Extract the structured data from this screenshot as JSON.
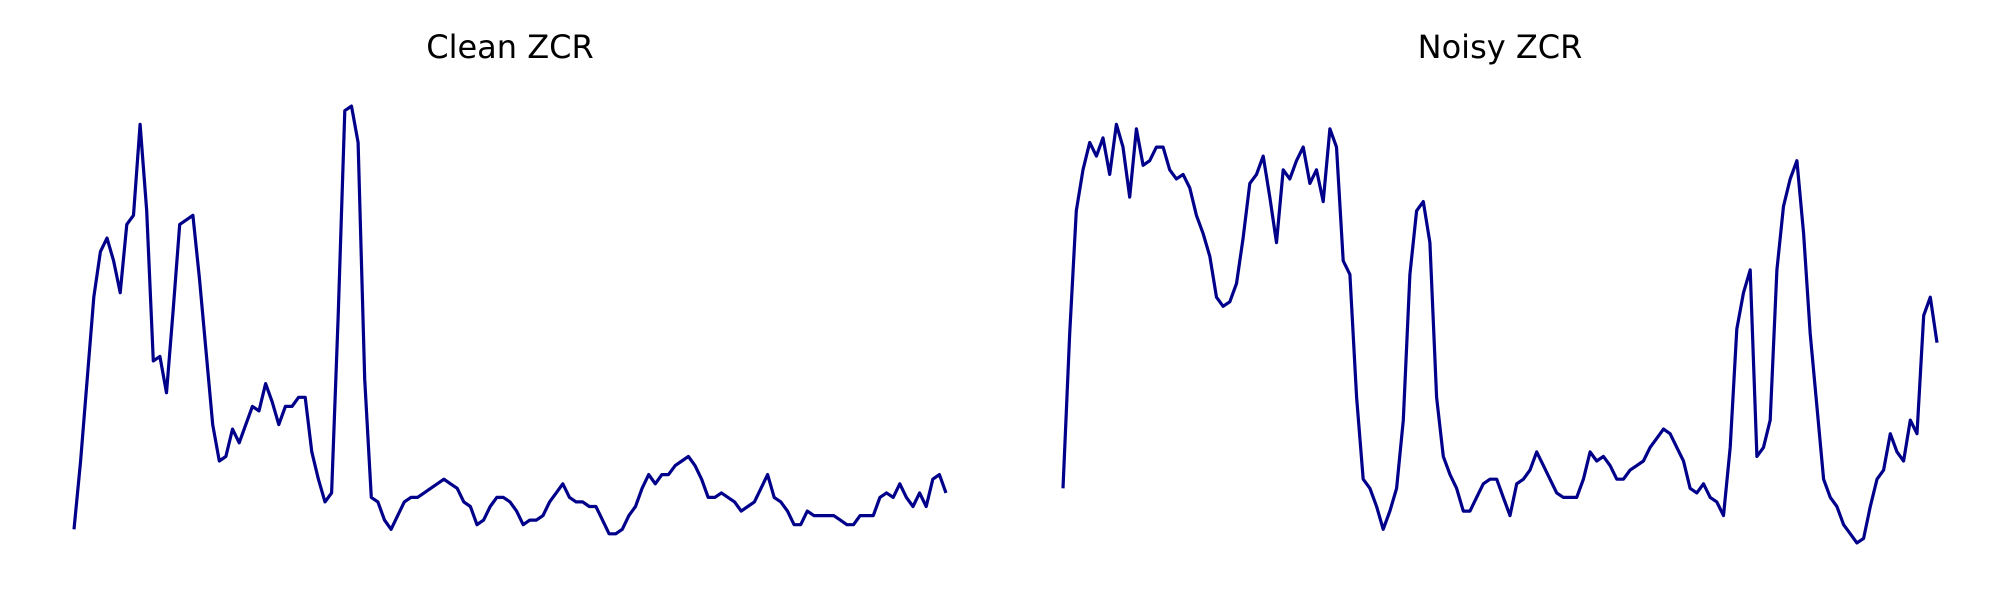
{
  "chart_data": [
    {
      "type": "line",
      "title": "Clean ZCR",
      "xlabel": "",
      "ylabel": "",
      "axes_visible": false,
      "grid": false,
      "color": "#00008b",
      "ylim": [
        0,
        1
      ],
      "values": [
        0.05,
        0.2,
        0.38,
        0.56,
        0.66,
        0.69,
        0.64,
        0.57,
        0.72,
        0.74,
        0.94,
        0.75,
        0.42,
        0.43,
        0.35,
        0.53,
        0.72,
        0.73,
        0.74,
        0.6,
        0.44,
        0.28,
        0.2,
        0.21,
        0.27,
        0.24,
        0.28,
        0.32,
        0.31,
        0.37,
        0.33,
        0.28,
        0.32,
        0.32,
        0.34,
        0.34,
        0.22,
        0.16,
        0.11,
        0.13,
        0.52,
        0.97,
        0.98,
        0.9,
        0.38,
        0.12,
        0.11,
        0.07,
        0.05,
        0.08,
        0.11,
        0.12,
        0.12,
        0.13,
        0.14,
        0.15,
        0.16,
        0.15,
        0.14,
        0.11,
        0.1,
        0.06,
        0.07,
        0.1,
        0.12,
        0.12,
        0.11,
        0.09,
        0.06,
        0.07,
        0.07,
        0.08,
        0.11,
        0.13,
        0.15,
        0.12,
        0.11,
        0.11,
        0.1,
        0.1,
        0.07,
        0.04,
        0.04,
        0.05,
        0.08,
        0.1,
        0.14,
        0.17,
        0.15,
        0.17,
        0.17,
        0.19,
        0.2,
        0.21,
        0.19,
        0.16,
        0.12,
        0.12,
        0.13,
        0.12,
        0.11,
        0.09,
        0.1,
        0.11,
        0.14,
        0.17,
        0.12,
        0.11,
        0.09,
        0.06,
        0.06,
        0.09,
        0.08,
        0.08,
        0.08,
        0.08,
        0.07,
        0.06,
        0.06,
        0.08,
        0.08,
        0.08,
        0.12,
        0.13,
        0.12,
        0.15,
        0.12,
        0.1,
        0.13,
        0.1,
        0.16,
        0.17,
        0.13
      ]
    },
    {
      "type": "line",
      "title": "Noisy ZCR",
      "xlabel": "",
      "ylabel": "",
      "axes_visible": false,
      "grid": false,
      "color": "#00008b",
      "ylim": [
        0,
        1
      ],
      "values": [
        0.14,
        0.48,
        0.75,
        0.84,
        0.9,
        0.87,
        0.91,
        0.83,
        0.94,
        0.89,
        0.78,
        0.93,
        0.85,
        0.86,
        0.89,
        0.89,
        0.84,
        0.82,
        0.83,
        0.8,
        0.74,
        0.7,
        0.65,
        0.56,
        0.54,
        0.55,
        0.59,
        0.69,
        0.81,
        0.83,
        0.87,
        0.78,
        0.68,
        0.84,
        0.82,
        0.86,
        0.89,
        0.81,
        0.84,
        0.77,
        0.93,
        0.89,
        0.64,
        0.61,
        0.34,
        0.16,
        0.14,
        0.1,
        0.05,
        0.09,
        0.14,
        0.29,
        0.61,
        0.75,
        0.77,
        0.68,
        0.34,
        0.21,
        0.17,
        0.14,
        0.09,
        0.09,
        0.12,
        0.15,
        0.16,
        0.16,
        0.12,
        0.08,
        0.15,
        0.16,
        0.18,
        0.22,
        0.19,
        0.16,
        0.13,
        0.12,
        0.12,
        0.12,
        0.16,
        0.22,
        0.2,
        0.21,
        0.19,
        0.16,
        0.16,
        0.18,
        0.19,
        0.2,
        0.23,
        0.25,
        0.27,
        0.26,
        0.23,
        0.2,
        0.14,
        0.13,
        0.15,
        0.12,
        0.11,
        0.08,
        0.23,
        0.49,
        0.57,
        0.62,
        0.21,
        0.23,
        0.29,
        0.62,
        0.76,
        0.82,
        0.86,
        0.7,
        0.48,
        0.32,
        0.16,
        0.12,
        0.1,
        0.06,
        0.04,
        0.02,
        0.03,
        0.1,
        0.16,
        0.18,
        0.26,
        0.22,
        0.2,
        0.29,
        0.26,
        0.52,
        0.56,
        0.46
      ]
    }
  ]
}
